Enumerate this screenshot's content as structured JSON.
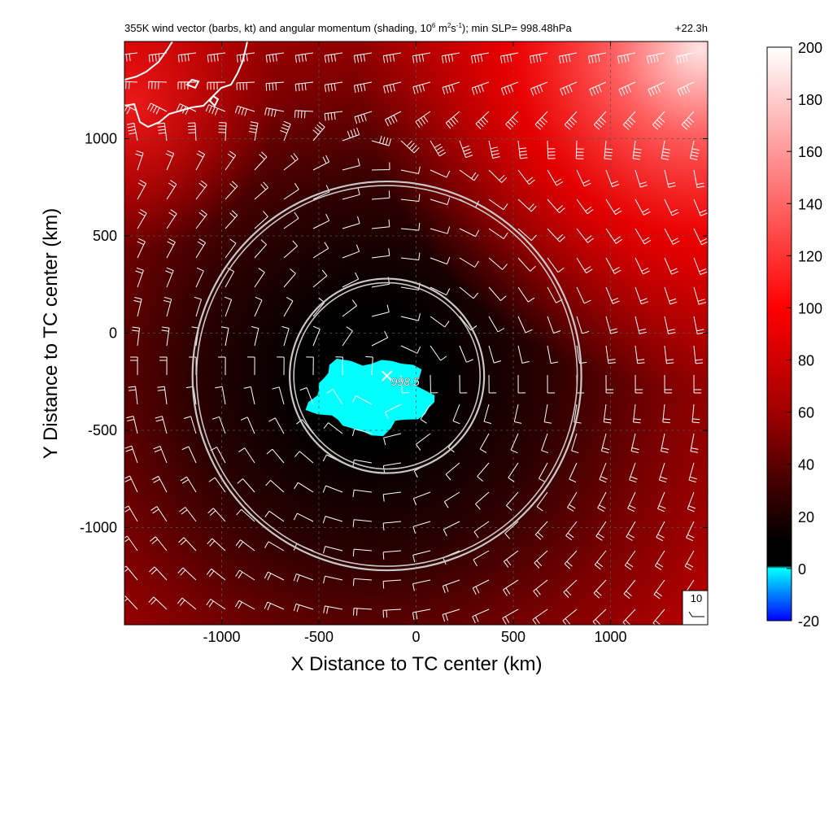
{
  "chart_data": {
    "type": "heatmap",
    "title": {
      "prefix": "355K wind vector (barbs, kt) and angular momentum (shading, 10",
      "exp1": "6",
      "mid1": " m",
      "exp2": "2",
      "mid2": "s",
      "exp3": "-1",
      "suffix": "); min SLP= 998.48hPa",
      "time": "+22.3h"
    },
    "xlabel": "X Distance to TC center (km)",
    "ylabel": "Y Distance to TC center (km)",
    "xlim": [
      -1500,
      1500
    ],
    "ylim": [
      -1500,
      1500
    ],
    "x_ticks": [
      -1000,
      -500,
      0,
      500,
      1000
    ],
    "y_ticks": [
      -1000,
      -500,
      0,
      500,
      1000
    ],
    "x_tick_labels": [
      "-1000",
      "-500",
      "0",
      "500",
      "1000"
    ],
    "y_tick_labels": [
      "-1000",
      "-500",
      "0",
      "500",
      "1000"
    ],
    "grid": true,
    "colorbar": {
      "ticks": [
        200,
        180,
        160,
        140,
        120,
        100,
        80,
        60,
        40,
        20,
        0,
        -20
      ],
      "tick_labels": [
        "200",
        "180",
        "160",
        "140",
        "120",
        "100",
        "80",
        "60",
        "40",
        "20",
        "0",
        "-20"
      ],
      "range": [
        -20,
        200
      ],
      "stops": [
        {
          "value": 200,
          "color": "#ffffff"
        },
        {
          "value": 100,
          "color": "#ff0000"
        },
        {
          "value": 60,
          "color": "#a00000"
        },
        {
          "value": 30,
          "color": "#3a0000"
        },
        {
          "value": 10,
          "color": "#000000"
        },
        {
          "value": 1,
          "color": "#000000"
        },
        {
          "value": 0,
          "color": "#00ffff"
        },
        {
          "value": -20,
          "color": "#0000ff"
        }
      ]
    },
    "circle_center": {
      "x": -150,
      "y": -220
    },
    "circle_radii": [
      500,
      1000
    ],
    "min_slp_label": "998.5",
    "min_slp_location": {
      "x": -150,
      "y": -220
    },
    "reference_barb_label": "10",
    "negative_region_center": {
      "x": -230,
      "y": -320
    },
    "colors": {
      "circle": "#c8c8c8",
      "coastline": "#ffffff",
      "barb": "#ffffff",
      "negative": "#00ffff",
      "grid": "#555555"
    }
  }
}
